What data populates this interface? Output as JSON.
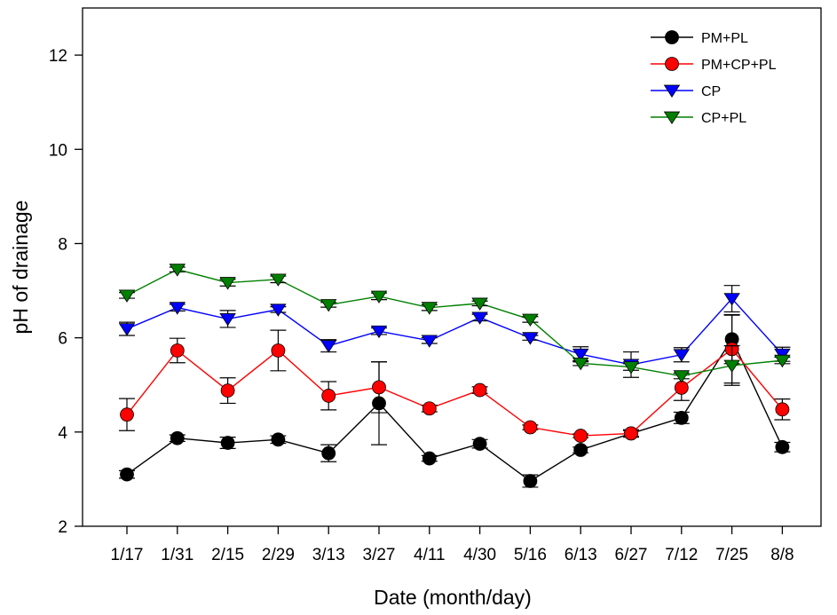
{
  "chart_data": {
    "type": "line",
    "xlabel": "Date (month/day)",
    "ylabel": "pH of drainage",
    "ylim": [
      2,
      13
    ],
    "yticks": [
      2,
      4,
      6,
      8,
      10,
      12
    ],
    "categories": [
      "1/17",
      "1/31",
      "2/15",
      "2/29",
      "3/13",
      "3/27",
      "4/11",
      "4/30",
      "5/16",
      "6/13",
      "6/27",
      "7/12",
      "7/25",
      "8/8"
    ],
    "legend_position": "top-right",
    "error_bars": true,
    "series": [
      {
        "name": "PM+PL",
        "color": "#000000",
        "marker": "circle",
        "values": [
          3.1,
          3.87,
          3.77,
          3.84,
          3.55,
          4.61,
          3.44,
          3.75,
          2.96,
          3.62,
          3.97,
          4.3,
          5.97,
          3.68
        ],
        "errors": [
          0.08,
          0.07,
          0.12,
          0.08,
          0.18,
          0.88,
          0.06,
          0.09,
          0.13,
          0.06,
          0.08,
          0.12,
          0.52,
          0.1
        ]
      },
      {
        "name": "PM+CP+PL",
        "color": "#ff0000",
        "marker": "circle",
        "values": [
          4.37,
          5.73,
          4.88,
          5.73,
          4.77,
          4.95,
          4.5,
          4.89,
          4.1,
          3.92,
          3.97,
          4.94,
          5.76,
          4.48
        ],
        "errors": [
          0.34,
          0.26,
          0.27,
          0.43,
          0.3,
          0.54,
          0.07,
          0.07,
          0.05,
          0.04,
          0.06,
          0.27,
          0.72,
          0.22
        ]
      },
      {
        "name": "CP",
        "color": "#0000ff",
        "marker": "triangle-down",
        "values": [
          6.19,
          6.64,
          6.4,
          6.6,
          5.83,
          6.14,
          5.94,
          6.43,
          6.0,
          5.65,
          5.43,
          5.64,
          6.83,
          5.65
        ],
        "errors": [
          0.14,
          0.07,
          0.18,
          0.06,
          0.13,
          0.07,
          0.06,
          0.07,
          0.05,
          0.16,
          0.27,
          0.15,
          0.28,
          0.15
        ]
      },
      {
        "name": "CP+PL",
        "color": "#008000",
        "marker": "triangle-down",
        "values": [
          6.9,
          7.45,
          7.17,
          7.24,
          6.7,
          6.88,
          6.64,
          6.73,
          6.39,
          5.46,
          5.38,
          5.19,
          5.41,
          5.52
        ],
        "errors": [
          0.06,
          0.05,
          0.07,
          0.07,
          0.05,
          0.07,
          0.06,
          0.05,
          0.06,
          0.05,
          0.07,
          0.06,
          0.42,
          0.07
        ]
      }
    ]
  }
}
